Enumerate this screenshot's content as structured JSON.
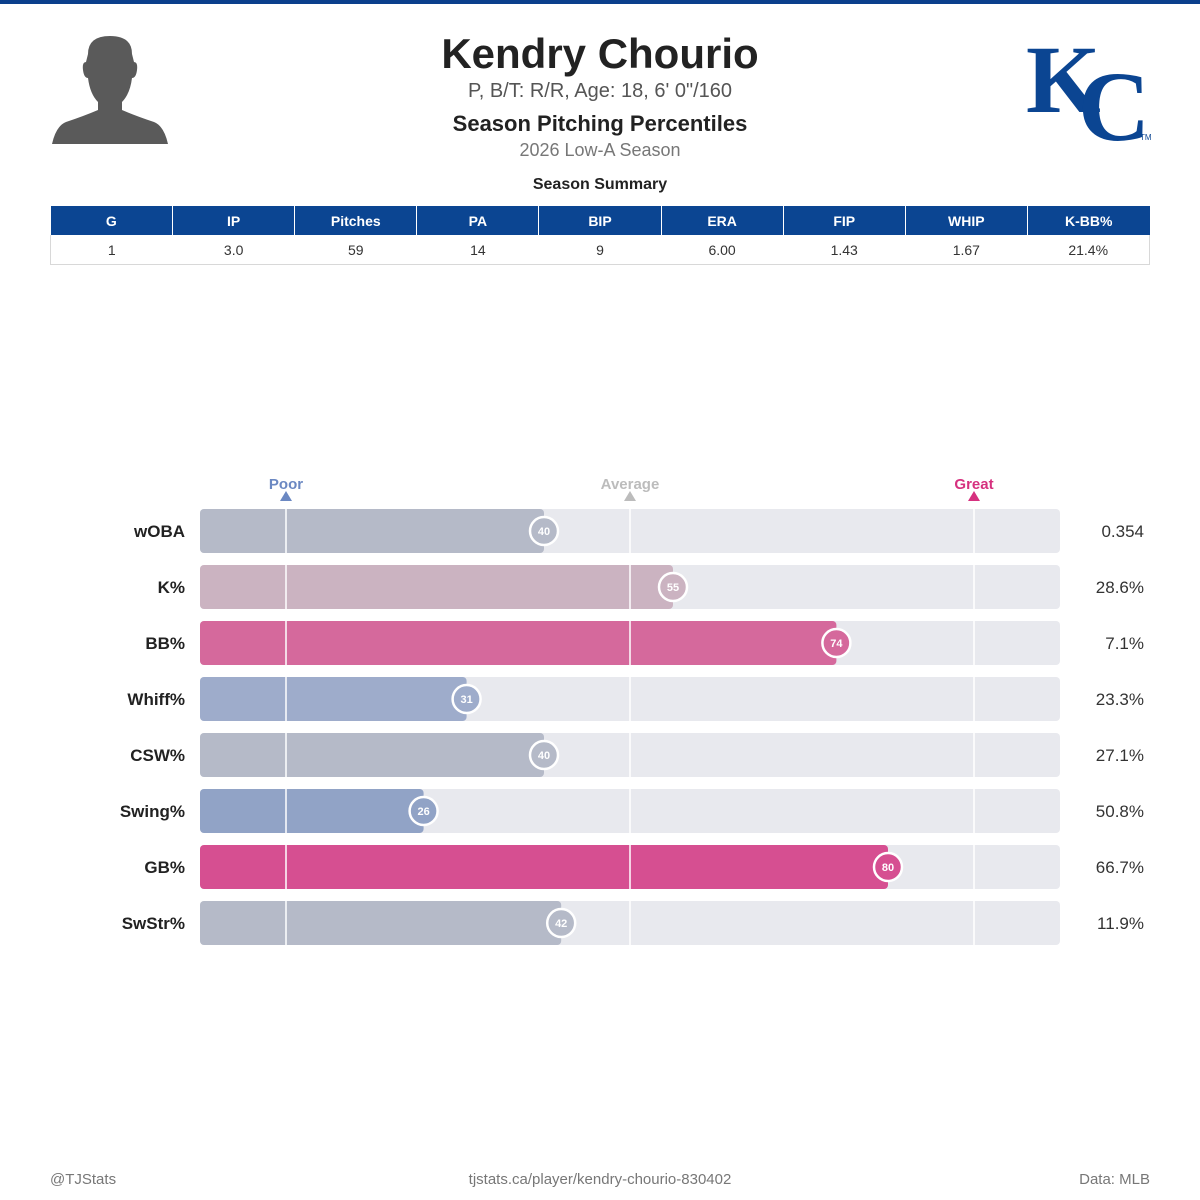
{
  "player": {
    "name": "Kendry Chourio",
    "info": "P, B/T: R/R, Age: 18, 6' 0\"/160"
  },
  "header": {
    "section_title": "Season Pitching Percentiles",
    "season": "2026 Low-A Season"
  },
  "summary": {
    "title": "Season Summary",
    "columns": [
      "G",
      "IP",
      "Pitches",
      "PA",
      "BIP",
      "ERA",
      "FIP",
      "WHIP",
      "K-BB%"
    ],
    "values": [
      "1",
      "3.0",
      "59",
      "14",
      "9",
      "6.00",
      "1.43",
      "1.67",
      "21.4%"
    ]
  },
  "chart_data": {
    "type": "bar",
    "orientation": "horizontal",
    "scale_labels": {
      "poor": "Poor",
      "average": "Average",
      "great": "Great"
    },
    "scale_values": {
      "poor": 10,
      "average": 50,
      "great": 90
    },
    "xlim": [
      0,
      100
    ],
    "categories": [
      "wOBA",
      "K%",
      "BB%",
      "Whiff%",
      "CSW%",
      "Swing%",
      "GB%",
      "SwStr%"
    ],
    "percentiles": [
      40,
      55,
      74,
      31,
      40,
      26,
      80,
      42
    ],
    "stat_values": [
      "0.354",
      "28.6%",
      "7.1%",
      "23.3%",
      "27.1%",
      "50.8%",
      "66.7%",
      "11.9%"
    ],
    "colors": [
      "#b5bac8",
      "#cbb3c1",
      "#d5699c",
      "#9eaccb",
      "#b5bac8",
      "#91a3c6",
      "#d64f91",
      "#b5bac8"
    ],
    "track_color": "#e8e9ee",
    "poor_color": "#6b88c2",
    "average_color": "#bcbcbc",
    "great_color": "#d6317f"
  },
  "footer": {
    "left": "@TJStats",
    "center": "tjstats.ca/player/kendry-chourio-830402",
    "right": "Data: MLB"
  },
  "colors": {
    "header_blue": "#0b4592",
    "accent_blue": "#0b3f8c"
  },
  "icons": {
    "headshot": "player-silhouette-icon",
    "team_logo": "kc-royals-logo"
  }
}
